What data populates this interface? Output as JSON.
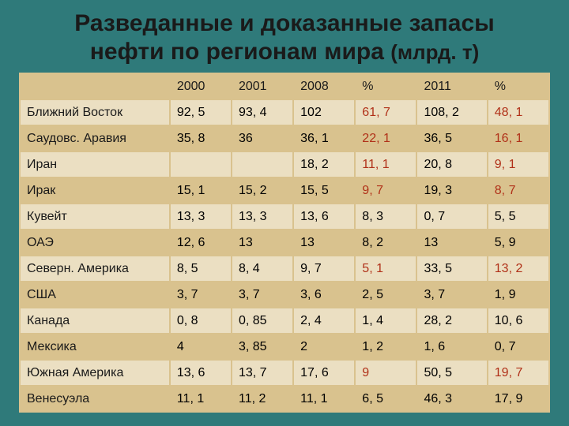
{
  "title_line1": "Разведанные  и доказанные запасы",
  "title_line2": "нефти по регионам мира ",
  "title_unit": "(млрд. т)",
  "colors": {
    "background": "#2f7a7a",
    "band_odd": "#d9c28e",
    "band_even": "#ebdfc2",
    "border": "#d9c28e",
    "text": "#1a1a1a",
    "highlight": "#b03018"
  },
  "columns": [
    "",
    "2000",
    "2001",
    "2008",
    "%",
    "2011",
    "%"
  ],
  "rows": [
    {
      "label": "Ближний Восток",
      "cells": [
        "92, 5",
        "93, 4",
        "102",
        "61, 7",
        "108, 2",
        "48, 1"
      ],
      "hl": [
        3,
        5
      ]
    },
    {
      "label": "Саудовс. Аравия",
      "cells": [
        "35, 8",
        "36",
        "36, 1",
        "22, 1",
        "36, 5",
        "16, 1"
      ],
      "hl": [
        3,
        5
      ]
    },
    {
      "label": "Иран",
      "cells": [
        "",
        "",
        "18, 2",
        "11, 1",
        "20, 8",
        "9, 1"
      ],
      "hl": [
        3,
        5
      ]
    },
    {
      "label": "Ирак",
      "cells": [
        "15, 1",
        "15, 2",
        "15, 5",
        "9, 7",
        "19, 3",
        "8, 7"
      ],
      "hl": [
        3,
        5
      ]
    },
    {
      "label": "Кувейт",
      "cells": [
        "13, 3",
        "13, 3",
        "13, 6",
        "8, 3",
        "0, 7",
        "5, 5"
      ],
      "hl": []
    },
    {
      "label": "ОАЭ",
      "cells": [
        "12, 6",
        "13",
        "13",
        "8, 2",
        "13",
        "5, 9"
      ],
      "hl": []
    },
    {
      "label": "Северн. Америка",
      "cells": [
        "8, 5",
        "8, 4",
        "9, 7",
        "5, 1",
        "33, 5",
        "13, 2"
      ],
      "hl": [
        3,
        5
      ]
    },
    {
      "label": "США",
      "cells": [
        "3, 7",
        "3, 7",
        "3, 6",
        "2, 5",
        "3, 7",
        "1, 9"
      ],
      "hl": []
    },
    {
      "label": "Канада",
      "cells": [
        "0, 8",
        "0, 85",
        "2, 4",
        "1, 4",
        "28, 2",
        "10, 6"
      ],
      "hl": []
    },
    {
      "label": "Мексика",
      "cells": [
        "4",
        "3, 85",
        "2",
        "1, 2",
        "1, 6",
        "0, 7"
      ],
      "hl": []
    },
    {
      "label": "Южная Америка",
      "cells": [
        "13, 6",
        "13, 7",
        "17, 6",
        "9",
        "50, 5",
        "19, 7"
      ],
      "hl": [
        3,
        5
      ]
    },
    {
      "label": "Венесуэла",
      "cells": [
        "11, 1",
        "11, 2",
        "11, 1",
        "6, 5",
        "46, 3",
        "17, 9"
      ],
      "hl": []
    }
  ],
  "fontsize": {
    "title": 30,
    "title_sub": 26,
    "cell": 16
  }
}
